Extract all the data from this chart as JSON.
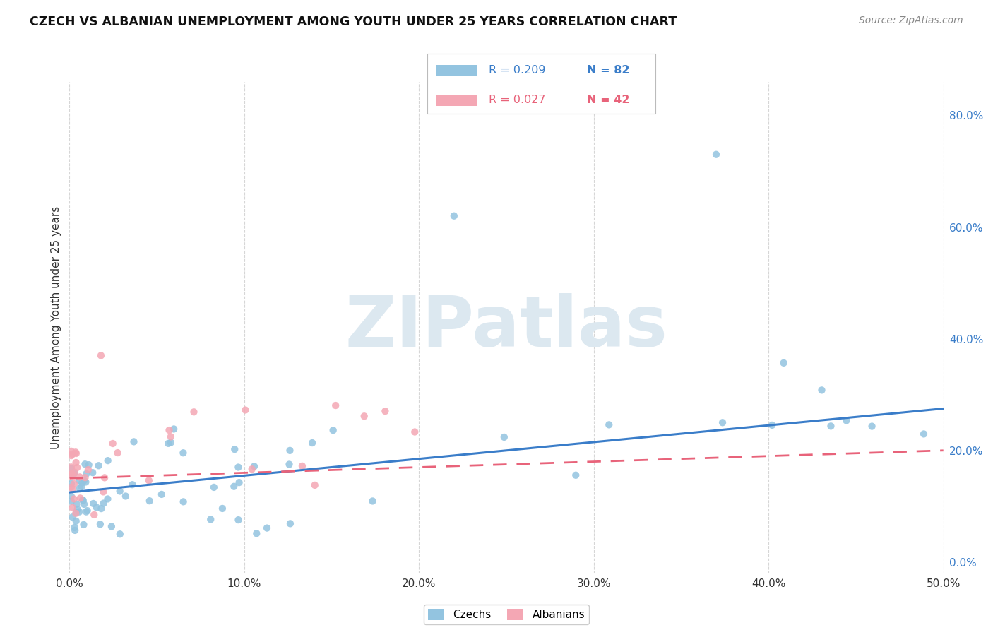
{
  "title": "CZECH VS ALBANIAN UNEMPLOYMENT AMONG YOUTH UNDER 25 YEARS CORRELATION CHART",
  "source": "Source: ZipAtlas.com",
  "ylabel": "Unemployment Among Youth under 25 years",
  "xlim": [
    0.0,
    0.5
  ],
  "ylim": [
    -0.02,
    0.86
  ],
  "xticks": [
    0.0,
    0.1,
    0.2,
    0.3,
    0.4,
    0.5
  ],
  "yticks_right": [
    0.0,
    0.2,
    0.4,
    0.6,
    0.8
  ],
  "czech_R": 0.209,
  "czech_N": 82,
  "albanian_R": 0.027,
  "albanian_N": 42,
  "czech_color": "#93c4e0",
  "albanian_color": "#f4a7b4",
  "czech_line_color": "#3a7dc9",
  "albanian_line_color": "#e8637a",
  "watermark": "ZIPatlas",
  "watermark_color": "#dce8f0",
  "legend_R_color": "#3a7dc9",
  "legend_N_color": "#3a7dc9",
  "legend_albanian_R_color": "#e8637a",
  "legend_albanian_N_color": "#e8637a"
}
